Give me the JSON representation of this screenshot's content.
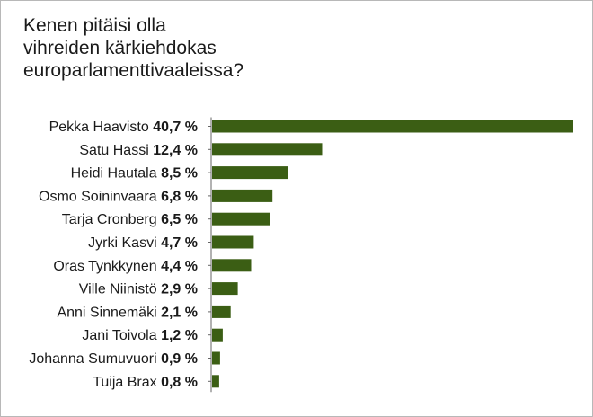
{
  "chart_data": {
    "type": "bar",
    "orientation": "horizontal",
    "title": [
      "Kenen pitäisi olla",
      "vihreiden kärkiehdokas",
      "europarlamenttivaaleissa?"
    ],
    "categories": [
      "Pekka Haavisto",
      "Satu Hassi",
      "Heidi Hautala",
      "Osmo Soininvaara",
      "Tarja Cronberg",
      "Jyrki Kasvi",
      "Oras Tynkkynen",
      "Ville Niinistö",
      "Anni Sinnemäki",
      "Jani Toivola",
      "Johanna Sumuvuori",
      "Tuija Brax"
    ],
    "values": [
      40.7,
      12.4,
      8.5,
      6.8,
      6.5,
      4.7,
      4.4,
      2.9,
      2.1,
      1.2,
      0.9,
      0.8
    ],
    "value_labels": [
      "40,7 %",
      "12,4 %",
      "8,5 %",
      "6,8 %",
      "6,5 %",
      "4,7 %",
      "4,4 %",
      "2,9 %",
      "2,1 %",
      "1,2 %",
      "0,9 %",
      "0,8 %"
    ],
    "xlim": [
      0,
      40.7
    ],
    "bar_color": "#3b5e14",
    "axis_color": "#666666",
    "grid": false
  }
}
